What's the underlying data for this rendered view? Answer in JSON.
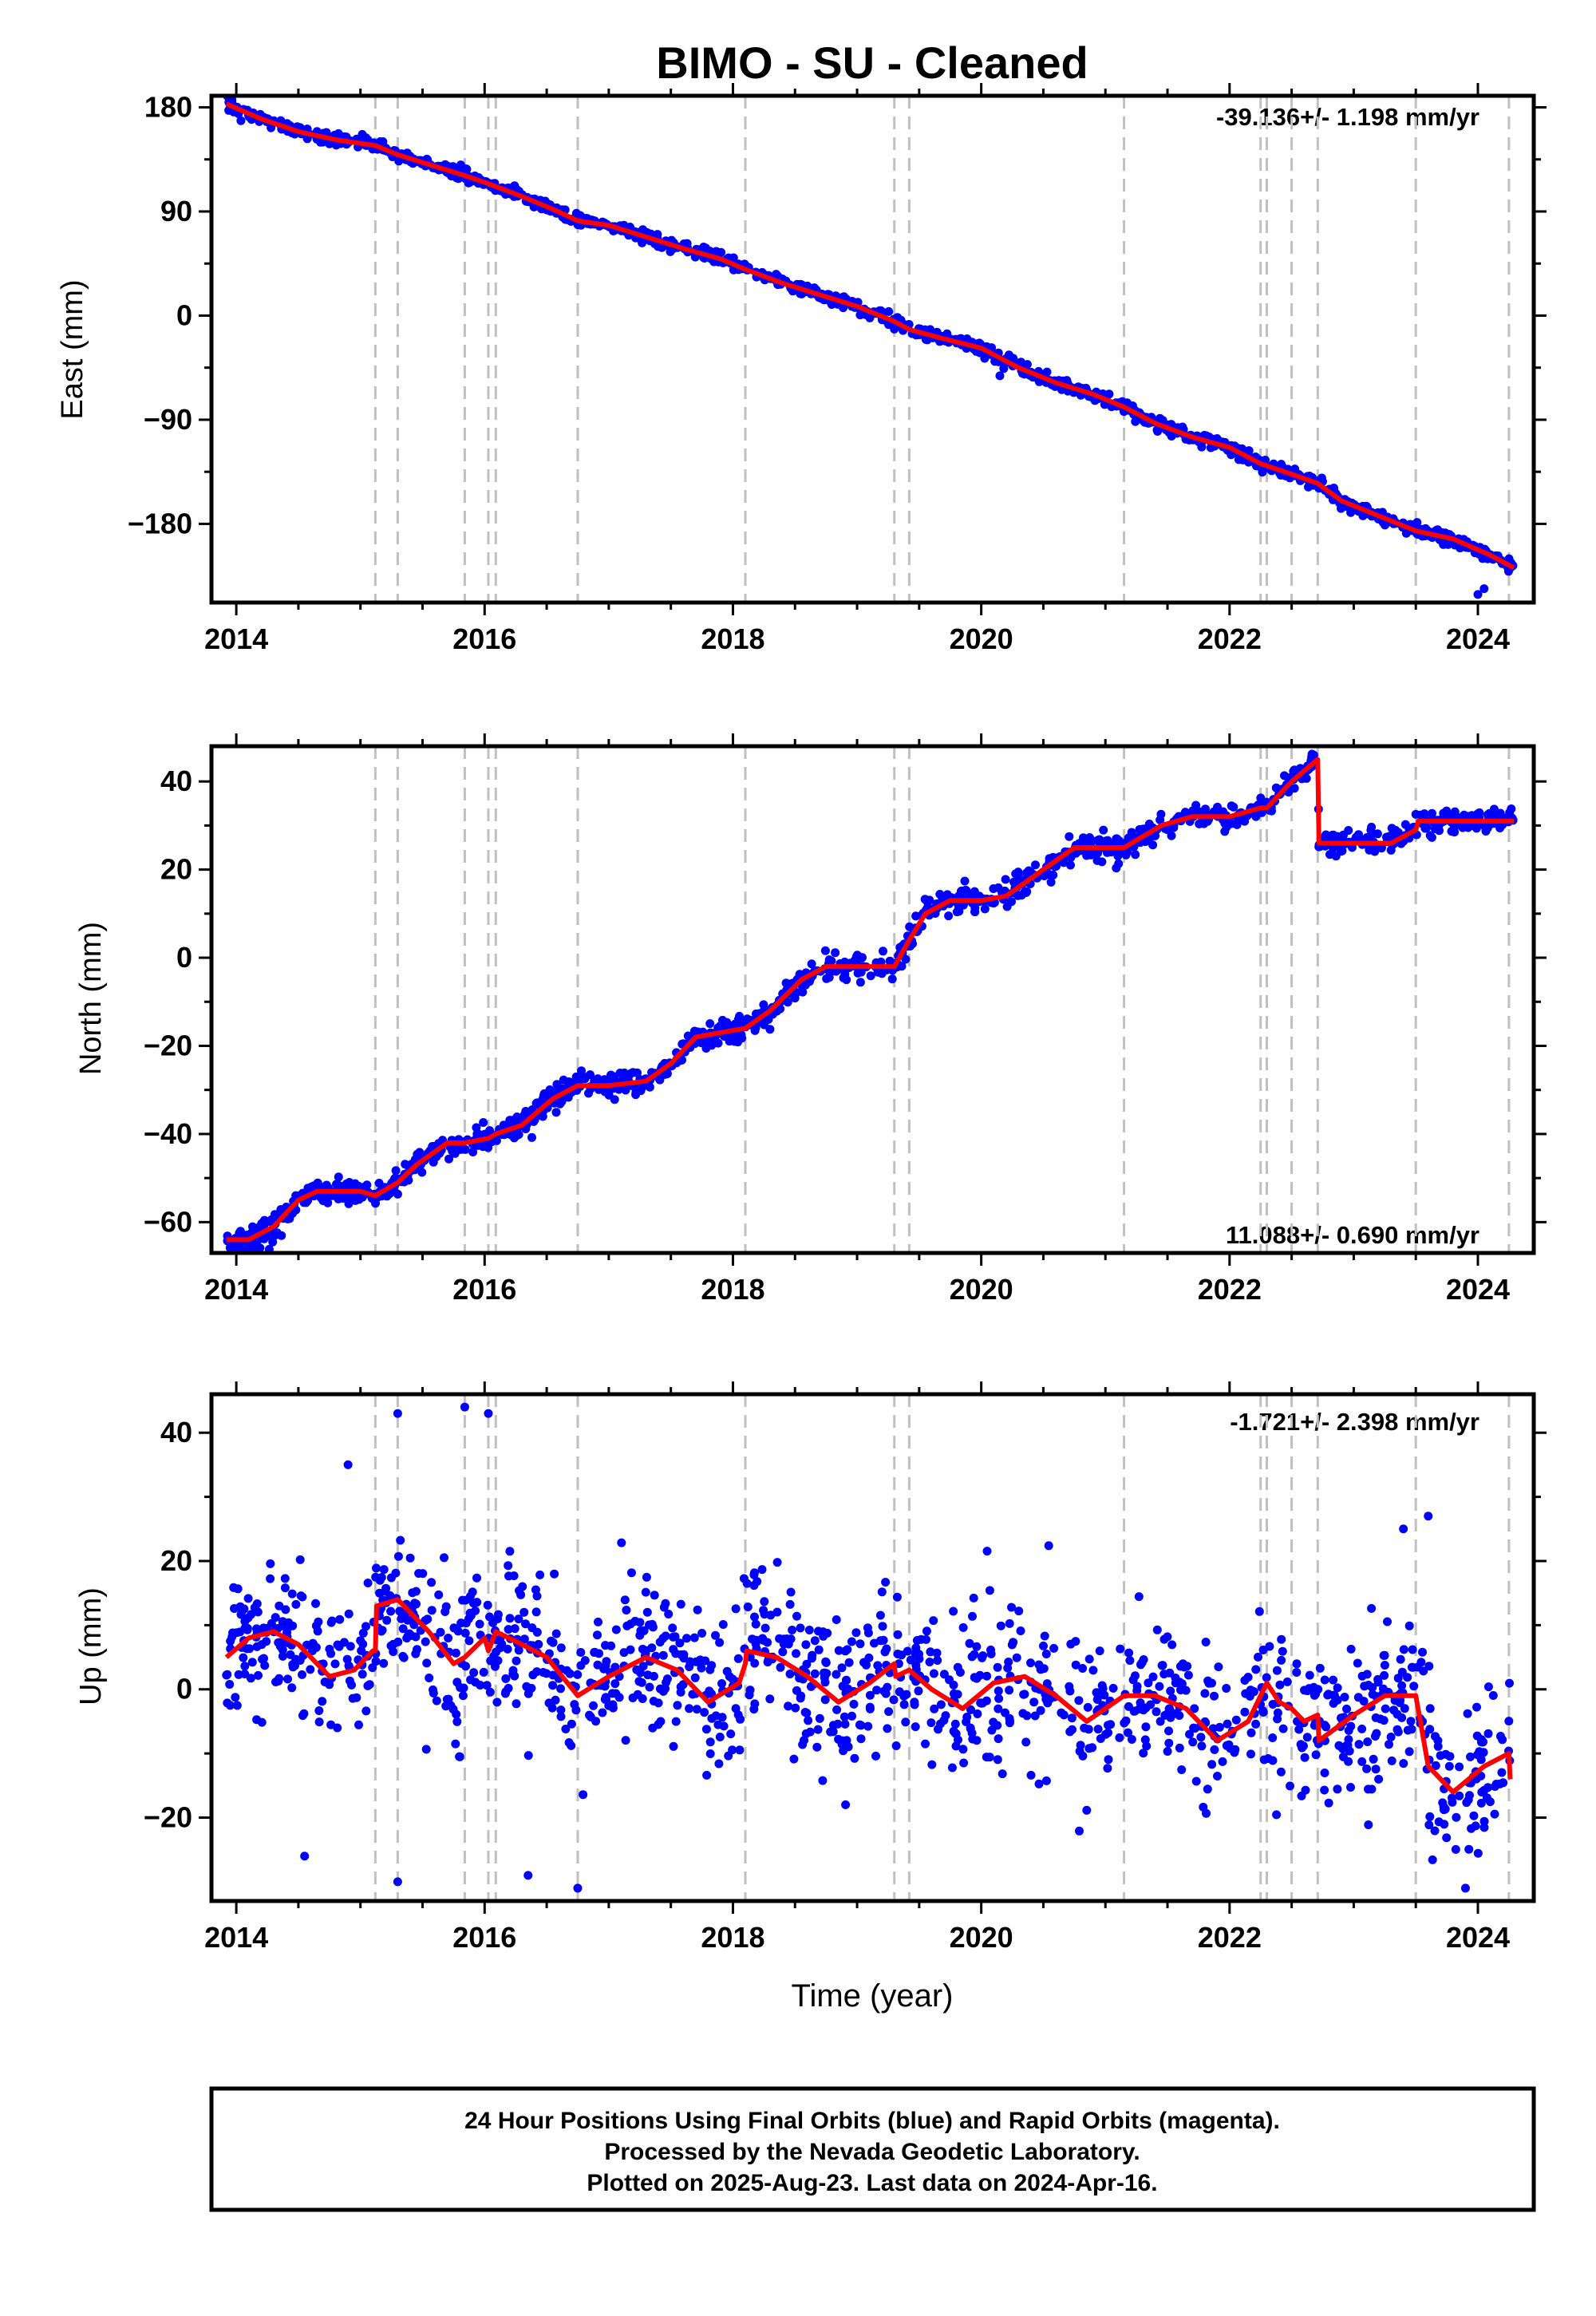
{
  "title": "BIMO  - SU - Cleaned",
  "footer": {
    "line1": "24 Hour Positions Using Final Orbits (blue) and Rapid Orbits (magenta).",
    "line2": "Processed by the Nevada Geodetic Laboratory.",
    "line3": "Plotted on 2025-Aug-23. Last data on 2024-Apr-16."
  },
  "colors": {
    "points": "#0000ff",
    "model": "#ff0000",
    "eventlines": "#c0c0c0"
  },
  "chart_data": [
    {
      "type": "scatter",
      "ylabel": "East (mm)",
      "rate_text": "-39.136+/- 1.198 mm/yr",
      "rate_position": "top-right",
      "xlim": [
        2013.8,
        2024.45
      ],
      "ylim": [
        -248,
        190
      ],
      "xticks": [
        2014,
        2016,
        2018,
        2020,
        2022,
        2024
      ],
      "yticks": [
        180,
        90,
        0,
        -90,
        -180
      ],
      "ytick_labels": [
        "180",
        "90",
        "0",
        "−90",
        "−180"
      ],
      "event_lines": [
        2015.12,
        2015.3,
        2015.84,
        2016.03,
        2016.09,
        2016.75,
        2018.1,
        2019.3,
        2019.42,
        2021.15,
        2022.25,
        2022.3,
        2022.5,
        2022.71,
        2023.5,
        2024.25
      ],
      "model_x": [
        2013.92,
        2014.2,
        2014.5,
        2014.8,
        2015.12,
        2015.3,
        2015.6,
        2015.84,
        2016.03,
        2016.3,
        2016.55,
        2016.75,
        2017.0,
        2017.3,
        2017.6,
        2017.9,
        2018.1,
        2018.4,
        2018.7,
        2019.0,
        2019.3,
        2019.42,
        2019.7,
        2020.0,
        2020.3,
        2020.6,
        2020.9,
        2021.15,
        2021.4,
        2021.7,
        2022.0,
        2022.25,
        2022.5,
        2022.71,
        2022.9,
        2023.2,
        2023.5,
        2023.8,
        2024.1,
        2024.29
      ],
      "model_y": [
        183,
        170,
        159,
        152,
        147,
        139,
        129,
        121,
        114,
        103,
        92,
        82,
        78,
        68,
        58,
        49,
        40,
        28,
        18,
        8,
        -5,
        -12,
        -20,
        -28,
        -45,
        -58,
        -68,
        -79,
        -93,
        -105,
        -114,
        -128,
        -137,
        -145,
        -160,
        -173,
        -186,
        -193,
        -207,
        -218
      ],
      "scatter_noise": 2.6,
      "outliers": [
        [
          2024.0,
          -241
        ],
        [
          2024.05,
          -236
        ],
        [
          2020.15,
          -52
        ]
      ]
    },
    {
      "type": "scatter",
      "ylabel": "North (mm)",
      "rate_text": "11.088+/- 0.690 mm/yr",
      "rate_position": "bottom-right",
      "xlim": [
        2013.8,
        2024.45
      ],
      "ylim": [
        -67,
        48
      ],
      "xticks": [
        2014,
        2016,
        2018,
        2020,
        2022,
        2024
      ],
      "yticks": [
        40,
        20,
        0,
        -20,
        -40,
        -60
      ],
      "ytick_labels": [
        "40",
        "20",
        "0",
        "−20",
        "−40",
        "−60"
      ],
      "event_lines": [
        2015.12,
        2015.3,
        2015.84,
        2016.03,
        2016.09,
        2016.75,
        2018.1,
        2019.3,
        2019.42,
        2021.15,
        2022.25,
        2022.3,
        2022.5,
        2022.71,
        2023.5,
        2024.25
      ],
      "model_x": [
        2013.92,
        2014.1,
        2014.3,
        2014.5,
        2014.65,
        2015.0,
        2015.12,
        2015.3,
        2015.45,
        2015.7,
        2015.84,
        2016.03,
        2016.09,
        2016.3,
        2016.55,
        2016.75,
        2017.0,
        2017.3,
        2017.5,
        2017.7,
        2017.9,
        2018.1,
        2018.3,
        2018.55,
        2018.75,
        2019.0,
        2019.3,
        2019.42,
        2019.55,
        2019.75,
        2020.0,
        2020.2,
        2020.5,
        2020.75,
        2021.0,
        2021.15,
        2021.45,
        2021.7,
        2022.0,
        2022.25,
        2022.3,
        2022.5,
        2022.71,
        2022.72,
        2023.0,
        2023.3,
        2023.5,
        2023.52,
        2023.75,
        2024.0,
        2024.29
      ],
      "model_y": [
        -64,
        -64,
        -61,
        -55,
        -53,
        -53,
        -54,
        -51,
        -47,
        -42,
        -42,
        -41,
        -40,
        -38,
        -32,
        -29,
        -29,
        -28,
        -24,
        -18,
        -17,
        -16,
        -12,
        -5,
        -2,
        -2,
        -2,
        4,
        10,
        13,
        13,
        14,
        20,
        25,
        25,
        25,
        30,
        32,
        32,
        34,
        34,
        40,
        45,
        26,
        26,
        26,
        29,
        31,
        31,
        31,
        31
      ],
      "scatter_noise": 1.4,
      "outliers": []
    },
    {
      "type": "scatter",
      "xlabel": "Time (year)",
      "ylabel": "Up (mm)",
      "rate_text": "-1.721+/- 2.398 mm/yr",
      "rate_position": "top-right",
      "xlim": [
        2013.8,
        2024.45
      ],
      "ylim": [
        -33,
        46
      ],
      "xticks": [
        2014,
        2016,
        2018,
        2020,
        2022,
        2024
      ],
      "yticks": [
        40,
        20,
        0,
        -20
      ],
      "ytick_labels": [
        "40",
        "20",
        "0",
        "−20"
      ],
      "event_lines": [
        2015.12,
        2015.3,
        2015.84,
        2016.03,
        2016.09,
        2016.75,
        2018.1,
        2019.3,
        2019.42,
        2021.15,
        2022.25,
        2022.3,
        2022.5,
        2022.71,
        2023.5,
        2024.25
      ],
      "model_x": [
        2013.92,
        2014.1,
        2014.3,
        2014.5,
        2014.75,
        2014.95,
        2015.1,
        2015.12,
        2015.13,
        2015.3,
        2015.55,
        2015.75,
        2015.84,
        2016.0,
        2016.03,
        2016.09,
        2016.3,
        2016.5,
        2016.75,
        2017.0,
        2017.3,
        2017.55,
        2017.8,
        2018.05,
        2018.1,
        2018.11,
        2018.35,
        2018.6,
        2018.85,
        2019.1,
        2019.3,
        2019.31,
        2019.42,
        2019.6,
        2019.85,
        2020.1,
        2020.35,
        2020.6,
        2020.85,
        2021.15,
        2021.4,
        2021.65,
        2021.9,
        2022.15,
        2022.25,
        2022.3,
        2022.4,
        2022.5,
        2022.6,
        2022.71,
        2022.72,
        2023.0,
        2023.25,
        2023.5,
        2023.6,
        2023.8,
        2024.05,
        2024.25,
        2024.26
      ],
      "model_y": [
        5,
        8,
        9,
        7,
        2,
        3,
        6,
        6,
        13,
        14,
        9,
        4,
        5,
        8,
        6,
        9,
        7,
        5,
        -1,
        2,
        5,
        3,
        -2,
        1,
        4,
        6,
        5,
        2,
        -2,
        1,
        4,
        2,
        3,
        0,
        -3,
        1,
        2,
        -1,
        -5,
        -1,
        -1,
        -3,
        -8,
        -5,
        -1,
        1,
        -2,
        -3,
        -5,
        -4,
        -8,
        -4,
        -1,
        -1,
        -12,
        -16,
        -12,
        -10,
        -14
      ],
      "scatter_noise": 6,
      "outliers": [
        [
          2015.3,
          43
        ],
        [
          2015.84,
          44
        ],
        [
          2016.03,
          43
        ],
        [
          2015.3,
          -30
        ],
        [
          2016.75,
          -31
        ],
        [
          2016.35,
          -29
        ],
        [
          2014.9,
          35
        ],
        [
          2023.4,
          25
        ],
        [
          2023.6,
          27
        ],
        [
          2014.55,
          -26
        ],
        [
          2023.9,
          -31
        ]
      ]
    }
  ]
}
